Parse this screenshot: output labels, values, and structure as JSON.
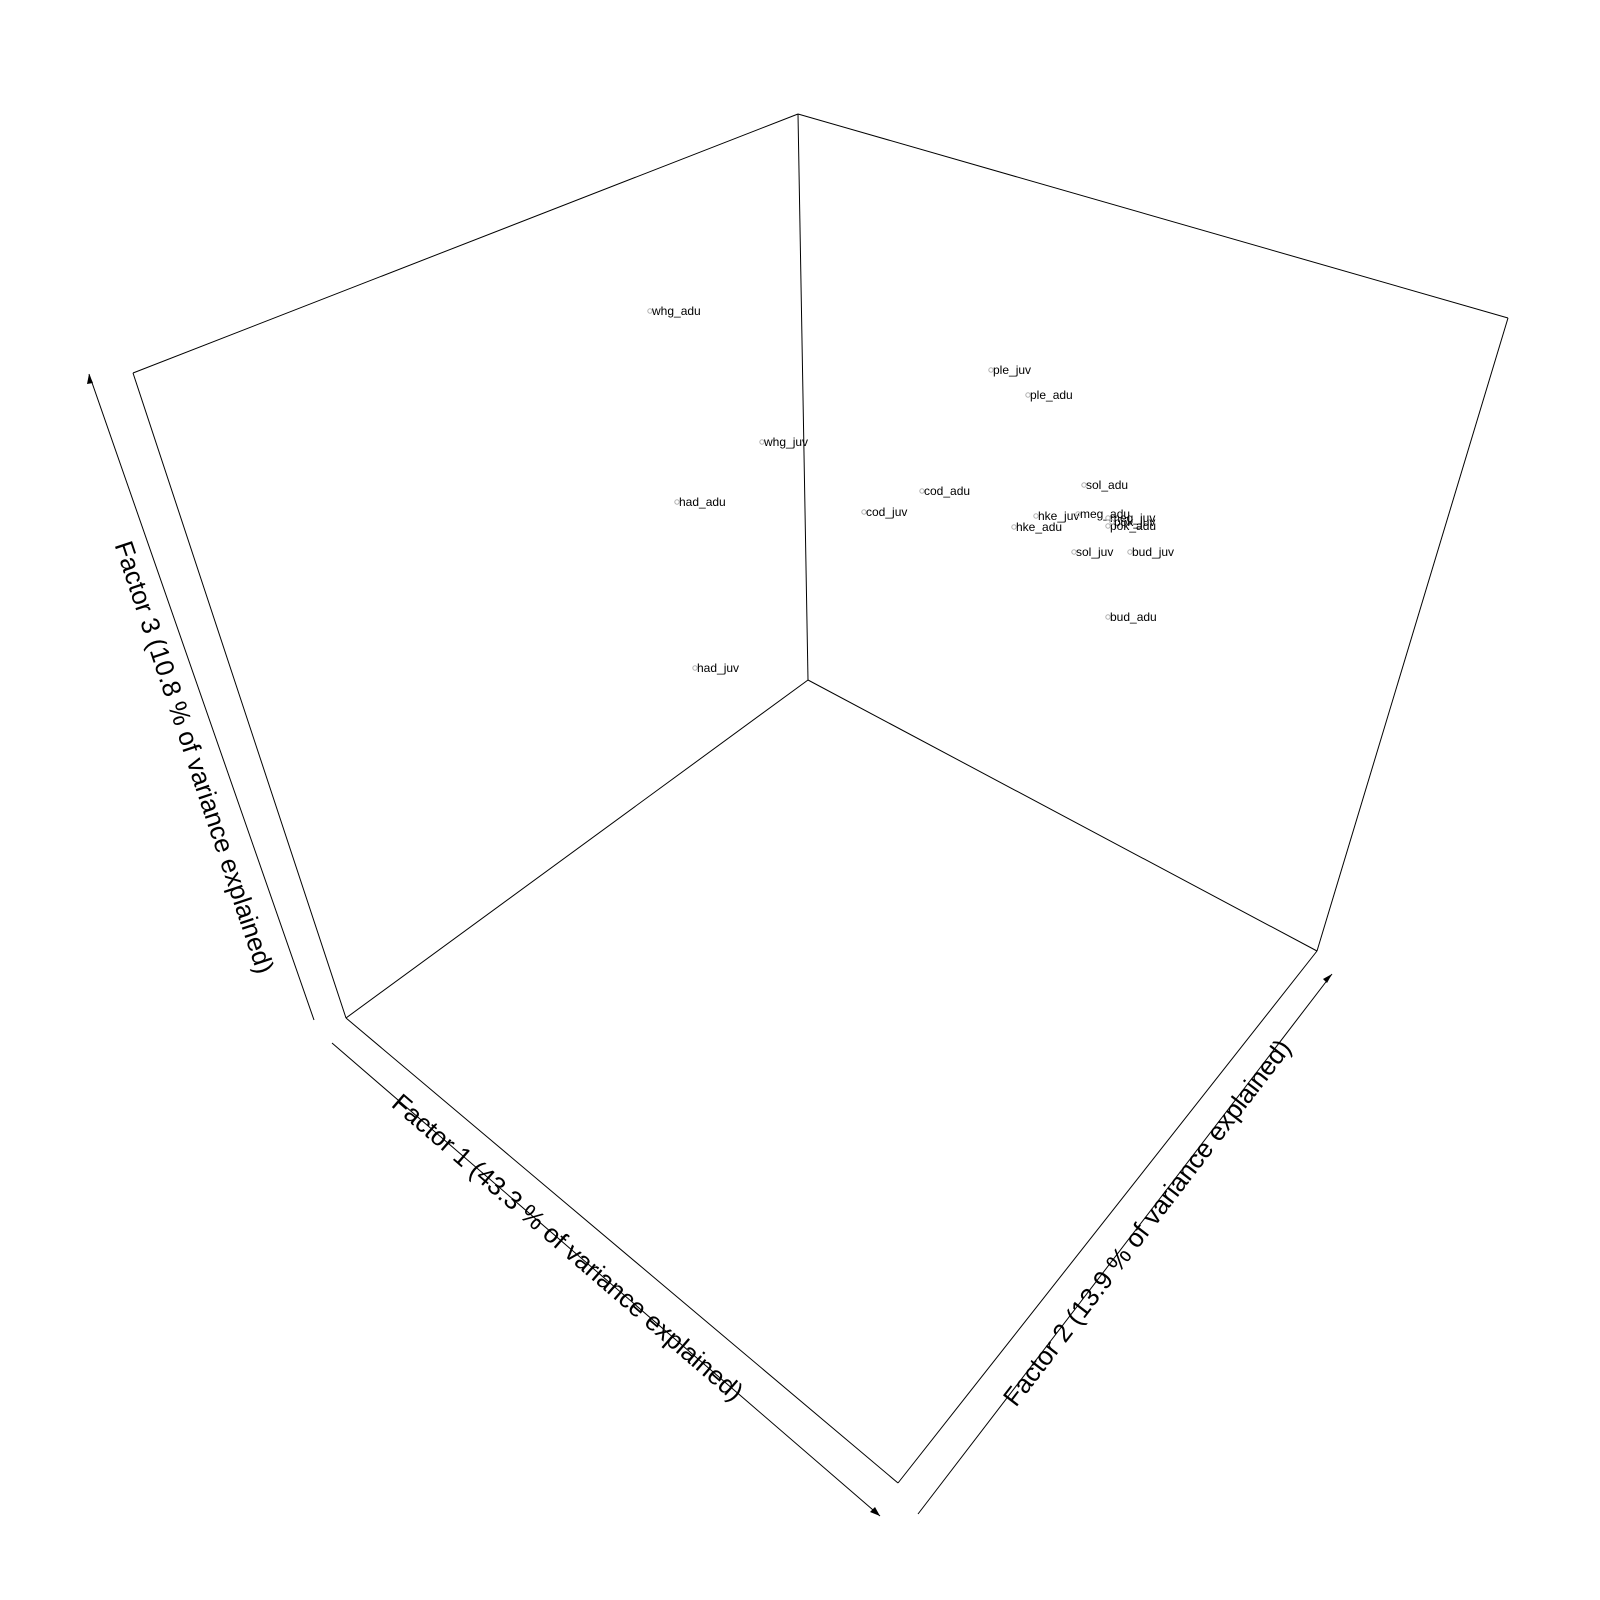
{
  "chart_data": {
    "type": "scatter",
    "projection": "3d",
    "grid": false,
    "legend": "none",
    "axes": {
      "x": {
        "label": "Factor 1 (43.3 % of variance explained)"
      },
      "y": {
        "label": "Factor 2 (13.9 % of variance explained)"
      },
      "z": {
        "label": "Factor 3 (10.8 % of variance explained)"
      }
    },
    "points": [
      {
        "label": "whg_adu"
      },
      {
        "label": "ple_juv"
      },
      {
        "label": "ple_adu"
      },
      {
        "label": "whg_juv"
      },
      {
        "label": "had_adu"
      },
      {
        "label": "cod_adu"
      },
      {
        "label": "cod_juv"
      },
      {
        "label": "sol_adu"
      },
      {
        "label": "hke_juv"
      },
      {
        "label": "meg_adu"
      },
      {
        "label": "meg_juv"
      },
      {
        "label": "hke_adu"
      },
      {
        "label": "pok_adu"
      },
      {
        "label": "pok_juv"
      },
      {
        "label": "sol_juv"
      },
      {
        "label": "bud_juv"
      },
      {
        "label": "bud_adu"
      },
      {
        "label": "had_juv"
      }
    ]
  }
}
